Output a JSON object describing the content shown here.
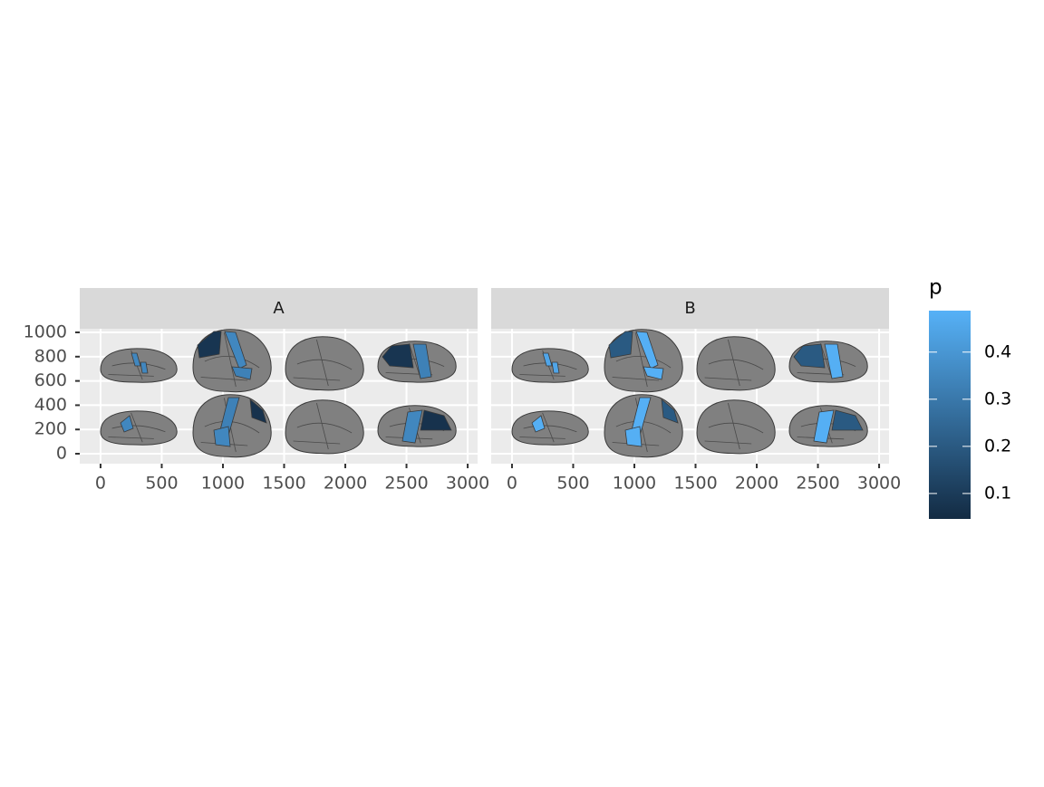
{
  "chart_data": {
    "type": "brain-atlas",
    "facets": [
      {
        "title": "A",
        "values": [
          0.35,
          0.35,
          0.08,
          0.35,
          0.33,
          0.08,
          0.33,
          0.35,
          0.33,
          0.35,
          0.07,
          0.35,
          0.07
        ]
      },
      {
        "title": "B",
        "values": [
          0.45,
          0.45,
          0.2,
          0.48,
          0.48,
          0.2,
          0.48,
          0.48,
          0.48,
          0.48,
          0.2,
          0.48,
          0.2
        ]
      }
    ],
    "xlim": [
      -170,
      3081
    ],
    "xticks": [
      0,
      500,
      1000,
      1500,
      2000,
      2500,
      3000
    ],
    "ylim": [
      -82,
      1030
    ],
    "yticks": [
      0,
      200,
      400,
      600,
      800,
      1000
    ],
    "grid": true,
    "brain_color": "#808080",
    "legend": {
      "title": "p",
      "position": "right",
      "ticks": [
        0.1,
        0.2,
        0.3,
        0.4
      ],
      "limits": [
        0.046,
        0.488
      ],
      "colors": [
        "#132B43",
        "#56B1F7"
      ]
    }
  }
}
